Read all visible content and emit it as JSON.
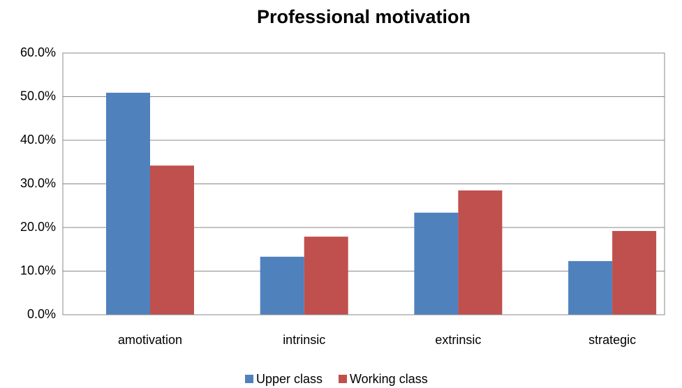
{
  "chart_data": {
    "type": "bar",
    "title": "Professional motivation",
    "categories": [
      "amotivation",
      "intrinsic",
      "extrinsic",
      "strategic"
    ],
    "series": [
      {
        "name": "Upper class",
        "color": "#4f81bd",
        "values": [
          50.9,
          13.3,
          23.4,
          12.3
        ]
      },
      {
        "name": "Working class",
        "color": "#c0504d",
        "values": [
          34.2,
          17.9,
          28.5,
          19.2
        ]
      }
    ],
    "ylim": [
      0,
      60
    ],
    "yticks": [
      {
        "value": 0,
        "label": "0.0%"
      },
      {
        "value": 10,
        "label": "10.0%"
      },
      {
        "value": 20,
        "label": "20.0%"
      },
      {
        "value": 30,
        "label": "30.0%"
      },
      {
        "value": 40,
        "label": "40.0%"
      },
      {
        "value": 50,
        "label": "50.0%"
      },
      {
        "value": 60,
        "label": "60.0%"
      }
    ],
    "grid": true,
    "legend": "bottom"
  }
}
